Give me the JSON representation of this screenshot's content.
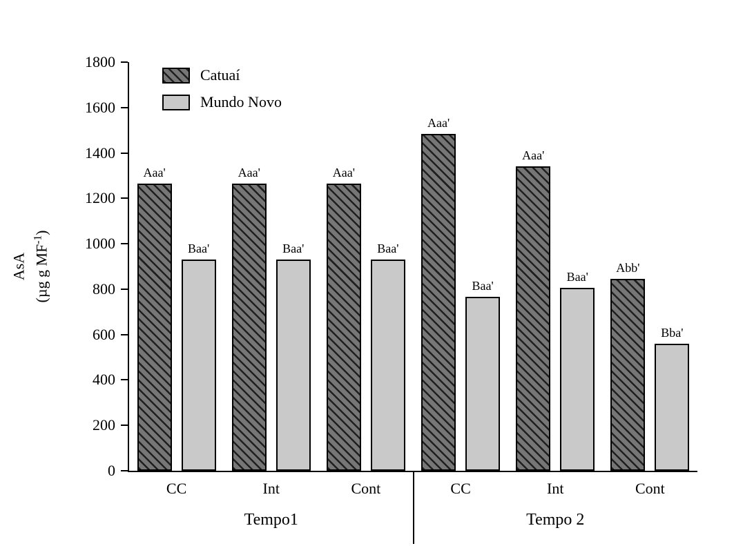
{
  "chart_data": {
    "type": "bar",
    "title": "",
    "ylabel": {
      "line1": "AsA",
      "line2_pre": "(µg g MF",
      "line2_sup": "-1",
      "line2_post": ")"
    },
    "ylim": [
      0,
      1800
    ],
    "yticks": [
      0,
      200,
      400,
      600,
      800,
      1000,
      1200,
      1400,
      1600,
      1800
    ],
    "categories": [
      "CC",
      "Int",
      "Cont",
      "CC",
      "Int",
      "Cont"
    ],
    "groups": [
      {
        "label": "Tempo1",
        "category_indices": [
          0,
          1,
          2
        ]
      },
      {
        "label": "Tempo 2",
        "category_indices": [
          3,
          4,
          5
        ]
      }
    ],
    "series": [
      {
        "name": "Catuaí",
        "pattern": "diagonal-hatch-dark",
        "values": [
          1265,
          1265,
          1265,
          1485,
          1340,
          845
        ],
        "annotations": [
          "Aaa'",
          "Aaa'",
          "Aaa'",
          "Aaa'",
          "Aaa'",
          "Abb'"
        ]
      },
      {
        "name": "Mundo Novo",
        "pattern": "solid-light-gray",
        "values": [
          930,
          930,
          930,
          765,
          805,
          560
        ],
        "annotations": [
          "Baa'",
          "Baa'",
          "Baa'",
          "Baa'",
          "Baa'",
          "Bba'"
        ]
      }
    ],
    "legend_position": "top-left-inside",
    "grid": false,
    "colors": {
      "catuai_fill": "#767676",
      "catuai_hatch": "#1f1f1f",
      "mundo_novo_fill": "#c9c9c9",
      "bar_border": "#000000",
      "axis": "#000000",
      "background": "#ffffff"
    }
  }
}
